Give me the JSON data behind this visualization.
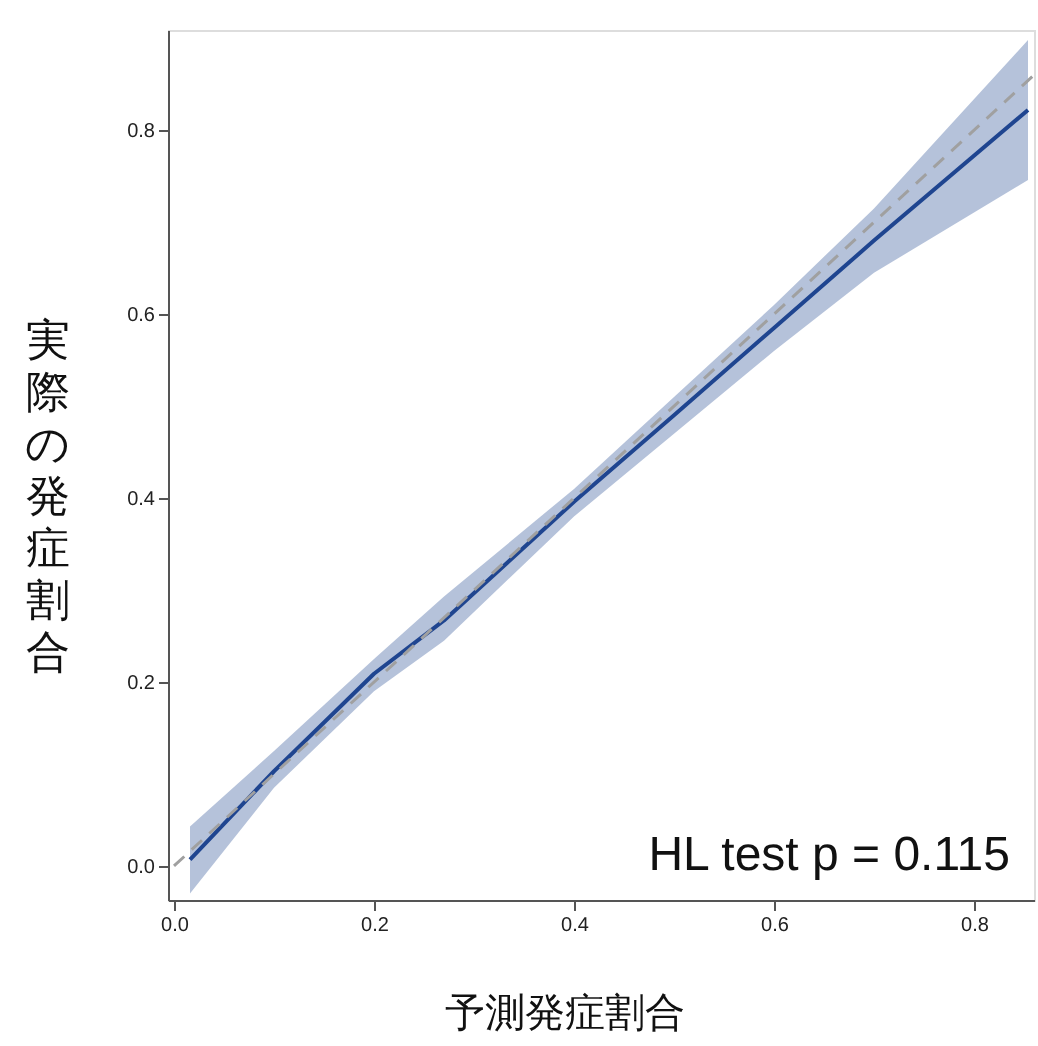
{
  "chart_data": {
    "type": "line",
    "xlabel": "予測発症割合",
    "ylabel": "実際の発症割合",
    "annotations": [
      "HL test p = 0.115"
    ],
    "xlim": [
      -0.006,
      0.86
    ],
    "ylim": [
      -0.037,
      0.909
    ],
    "xticks": [
      {
        "value": 0,
        "label": "0.0"
      },
      0.2,
      0.4,
      0.6,
      0.8
    ],
    "yticks": [
      {
        "value": 0,
        "label": "0.0"
      },
      0.2,
      0.4,
      0.6,
      0.8
    ],
    "grid": false,
    "series": [
      {
        "color": "#1f4590",
        "line_style": "solid",
        "x": [
          0.016,
          0.1,
          0.2,
          0.27,
          0.4,
          0.5,
          0.6,
          0.7,
          0.854
        ],
        "values": [
          0.007,
          0.103,
          0.209,
          0.267,
          0.396,
          0.49,
          0.585,
          0.68,
          0.822
        ],
        "lower": [
          -0.03,
          0.085,
          0.19,
          0.245,
          0.38,
          0.47,
          0.56,
          0.645,
          0.746
        ],
        "upper": [
          0.043,
          0.125,
          0.225,
          0.293,
          0.41,
          0.51,
          0.61,
          0.715,
          0.898
        ]
      },
      {
        "color": "#a0a0a0",
        "line_style": "dashed",
        "x": [
          0,
          0.86
        ],
        "values": [
          0,
          0.86
        ]
      }
    ]
  }
}
